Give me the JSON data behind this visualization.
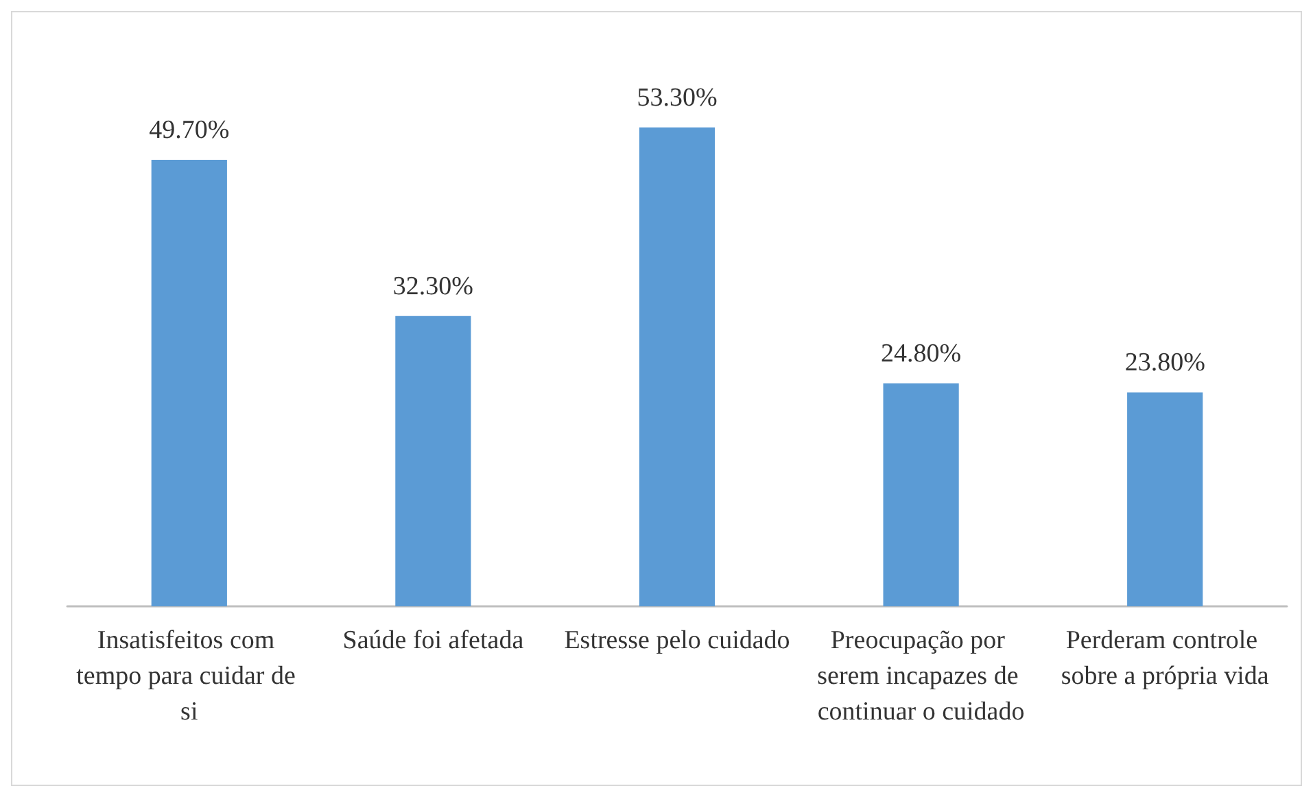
{
  "chart_data": {
    "type": "bar",
    "categories": [
      "Insatisfeitos com tempo para cuidar de si",
      "Saúde foi afetada",
      "Estresse pelo cuidado",
      "Preocupação por serem incapazes de continuar o cuidado",
      "Perderam controle sobre a própria vida"
    ],
    "values": [
      49.7,
      32.3,
      53.3,
      24.8,
      23.8
    ],
    "value_labels": [
      "49.70%",
      "32.30%",
      "53.30%",
      "24.80%",
      "23.80%"
    ],
    "color": "#5b9bd5"
  }
}
